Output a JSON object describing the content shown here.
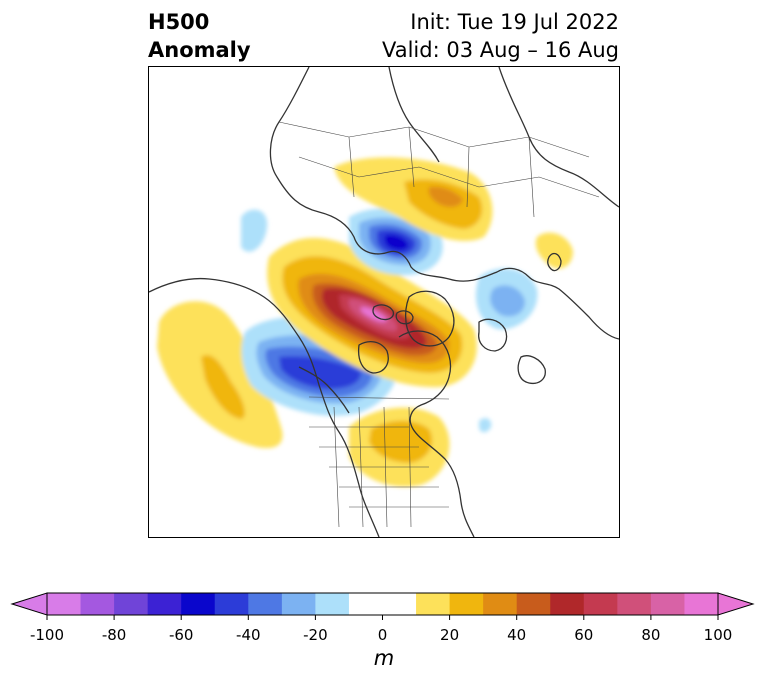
{
  "title": {
    "left_line1": "H500",
    "left_line2": "Anomaly",
    "right_line1": "Init: Tue 19 Jul 2022",
    "right_line2": "Valid: 03 Aug – 16 Aug"
  },
  "colorbar": {
    "unit": "m",
    "tick_labels": [
      "-100",
      "-80",
      "-60",
      "-40",
      "-20",
      "0",
      "20",
      "40",
      "60",
      "80",
      "100"
    ],
    "bins": [
      {
        "from": -100,
        "to": -90,
        "color": "#d87ce8"
      },
      {
        "from": -90,
        "to": -80,
        "color": "#a458e0"
      },
      {
        "from": -80,
        "to": -70,
        "color": "#7044d8"
      },
      {
        "from": -70,
        "to": -60,
        "color": "#3c22d4"
      },
      {
        "from": -60,
        "to": -50,
        "color": "#0a06cc"
      },
      {
        "from": -50,
        "to": -40,
        "color": "#2c3cd8"
      },
      {
        "from": -40,
        "to": -30,
        "color": "#4e78e4"
      },
      {
        "from": -30,
        "to": -20,
        "color": "#7cb2f2"
      },
      {
        "from": -20,
        "to": -10,
        "color": "#ade0fa"
      },
      {
        "from": -10,
        "to": 10,
        "color": "#ffffff"
      },
      {
        "from": 10,
        "to": 20,
        "color": "#fde15a"
      },
      {
        "from": 20,
        "to": 30,
        "color": "#f0b60e"
      },
      {
        "from": 30,
        "to": 40,
        "color": "#e08c14"
      },
      {
        "from": 40,
        "to": 50,
        "color": "#c85c1c"
      },
      {
        "from": 50,
        "to": 60,
        "color": "#b0282a"
      },
      {
        "from": 60,
        "to": 70,
        "color": "#c43a50"
      },
      {
        "from": 70,
        "to": 80,
        "color": "#d0507a"
      },
      {
        "from": 80,
        "to": 90,
        "color": "#d862a6"
      },
      {
        "from": 90,
        "to": 100,
        "color": "#e875d6"
      }
    ],
    "extend_low_color": "#d87ce8",
    "extend_high_color": "#e875d6"
  }
}
